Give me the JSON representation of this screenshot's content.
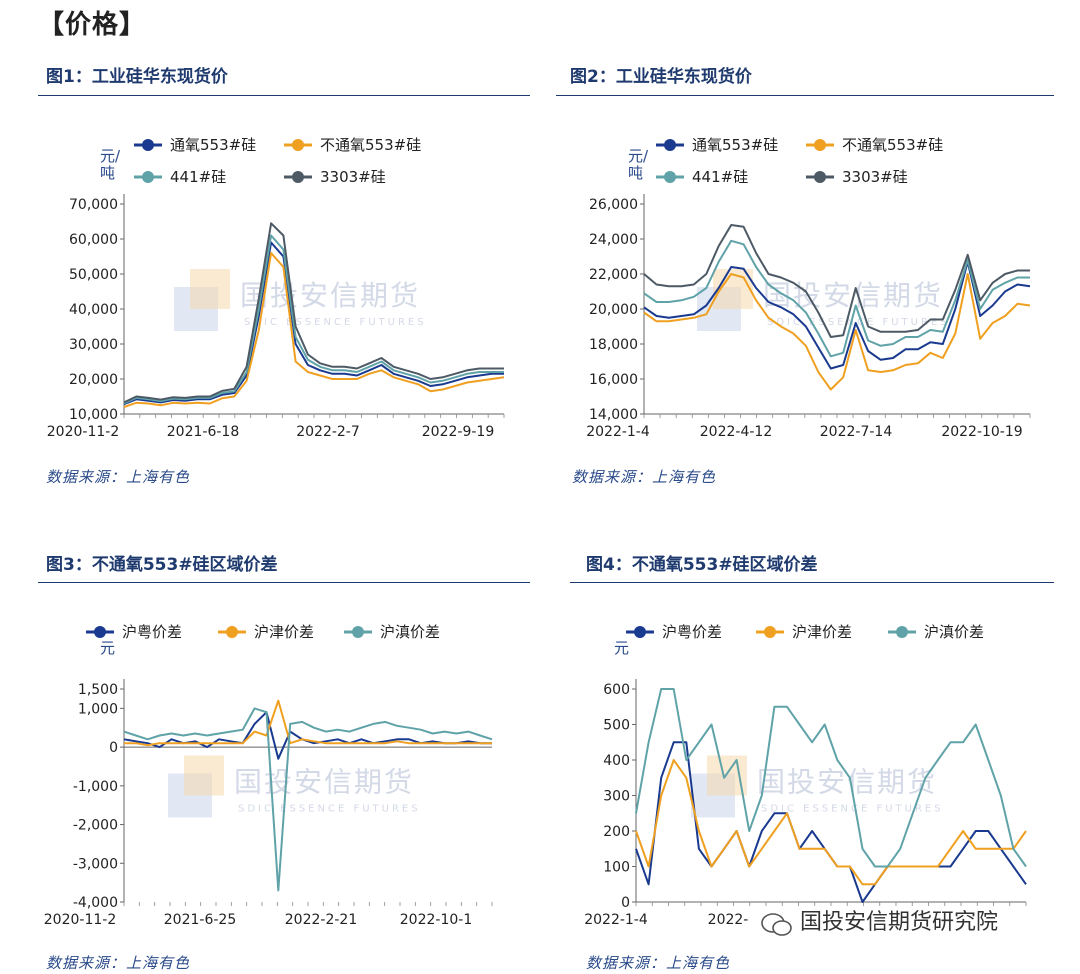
{
  "section_title": "【价格】",
  "watermark": "国投安信期货研究院",
  "chart_data": [
    {
      "id": "fig1",
      "type": "line",
      "title": "图1：工业硅华东现货价",
      "unit": "元/吨",
      "source": "数据来源：上海有色",
      "x_ticks": [
        "2020-11-2",
        "2021-6-18",
        "2022-2-7",
        "2022-9-19"
      ],
      "y_ticks": [
        "10,000",
        "20,000",
        "30,000",
        "40,000",
        "50,000",
        "60,000",
        "70,000"
      ],
      "ylim": [
        10000,
        70000
      ],
      "legend": "top",
      "series": [
        {
          "name": "通氧553#硅",
          "color": "#1a3a8f",
          "values": [
            12800,
            14200,
            13800,
            13300,
            14000,
            13800,
            14200,
            14200,
            15500,
            16000,
            21000,
            38000,
            59000,
            55000,
            30000,
            24000,
            22500,
            21500,
            21500,
            21000,
            22500,
            24000,
            21500,
            20500,
            19500,
            18000,
            18500,
            19500,
            20500,
            21000,
            21500,
            21500
          ]
        },
        {
          "name": "不通氧553#硅",
          "color": "#f0a020",
          "values": [
            12000,
            13200,
            13000,
            12500,
            13200,
            13000,
            13200,
            13000,
            14500,
            15000,
            19500,
            34000,
            56000,
            52000,
            25000,
            22000,
            21000,
            20000,
            20000,
            20000,
            21500,
            22500,
            20500,
            19500,
            18500,
            16500,
            17000,
            18000,
            19000,
            19500,
            20000,
            20500
          ]
        },
        {
          "name": "441#硅",
          "color": "#5fa3a8",
          "values": [
            13000,
            14600,
            14200,
            13700,
            14400,
            14200,
            14600,
            14600,
            16000,
            16500,
            22000,
            40000,
            61000,
            57000,
            32000,
            25500,
            23500,
            22500,
            22500,
            22000,
            23500,
            25000,
            22500,
            21500,
            20500,
            19000,
            19500,
            20500,
            21500,
            22000,
            22000,
            22000
          ]
        },
        {
          "name": "3303#硅",
          "color": "#4d5a66",
          "values": [
            13300,
            15000,
            14600,
            14100,
            14800,
            14600,
            15000,
            15000,
            16600,
            17200,
            23500,
            43000,
            64500,
            61000,
            35000,
            27000,
            24500,
            23500,
            23500,
            23000,
            24500,
            26000,
            23500,
            22500,
            21500,
            20000,
            20500,
            21500,
            22500,
            23000,
            23000,
            23000
          ]
        }
      ]
    },
    {
      "id": "fig2",
      "type": "line",
      "title": "图2：工业硅华东现货价",
      "unit": "元/吨",
      "source": "数据来源：上海有色",
      "x_ticks": [
        "2022-1-4",
        "2022-4-12",
        "2022-7-14",
        "2022-10-19"
      ],
      "y_ticks": [
        "14,000",
        "16,000",
        "18,000",
        "20,000",
        "22,000",
        "24,000",
        "26,000"
      ],
      "ylim": [
        14000,
        26000
      ],
      "legend": "top",
      "series": [
        {
          "name": "通氧553#硅",
          "color": "#1a3a8f",
          "values": [
            20100,
            19600,
            19500,
            19600,
            19700,
            20200,
            21200,
            22400,
            22300,
            21200,
            20400,
            20100,
            19700,
            19000,
            17800,
            16600,
            16800,
            19200,
            17600,
            17100,
            17200,
            17700,
            17700,
            18100,
            18000,
            20000,
            22700,
            19600,
            20200,
            21000,
            21400,
            21300
          ]
        },
        {
          "name": "不通氧553#硅",
          "color": "#f0a020",
          "values": [
            19800,
            19300,
            19300,
            19400,
            19500,
            19700,
            21000,
            22000,
            21800,
            20500,
            19500,
            19000,
            18600,
            17900,
            16400,
            15400,
            16100,
            18800,
            16500,
            16400,
            16500,
            16800,
            16900,
            17500,
            17200,
            18600,
            22000,
            18300,
            19200,
            19600,
            20300,
            20200
          ]
        },
        {
          "name": "441#硅",
          "color": "#5fa3a8",
          "values": [
            20900,
            20400,
            20400,
            20500,
            20700,
            21200,
            22700,
            23900,
            23700,
            22400,
            21400,
            20900,
            20500,
            19800,
            18600,
            17300,
            17500,
            20200,
            18200,
            17900,
            18000,
            18400,
            18400,
            18800,
            18700,
            20500,
            22800,
            20000,
            21100,
            21500,
            21800,
            21800
          ]
        },
        {
          "name": "3303#硅",
          "color": "#4d5a66",
          "values": [
            22000,
            21400,
            21300,
            21300,
            21400,
            22000,
            23600,
            24800,
            24700,
            23200,
            22000,
            21800,
            21500,
            21000,
            19800,
            18400,
            18500,
            21200,
            19000,
            18700,
            18700,
            18700,
            18800,
            19400,
            19400,
            21100,
            23100,
            20500,
            21500,
            22000,
            22200,
            22200
          ]
        }
      ]
    },
    {
      "id": "fig3",
      "type": "line",
      "title": "图3：不通氧553#硅区域价差",
      "unit": "元",
      "source": "数据来源：上海有色",
      "x_ticks": [
        "2020-11-2",
        "2021-6-25",
        "2022-2-21",
        "2022-10-1"
      ],
      "y_ticks": [
        "-4,000",
        "-3,000",
        "-2,000",
        "-1,000",
        "0",
        "1,000",
        "1,500"
      ],
      "ylim": [
        -4000,
        1500
      ],
      "legend": "top",
      "series": [
        {
          "name": "沪粤价差",
          "color": "#1a3a8f",
          "values": [
            200,
            150,
            100,
            0,
            200,
            100,
            150,
            0,
            200,
            150,
            100,
            600,
            900,
            -300,
            400,
            200,
            100,
            150,
            200,
            100,
            200,
            100,
            150,
            200,
            200,
            100,
            150,
            100,
            100,
            150,
            100,
            100
          ]
        },
        {
          "name": "沪津价差",
          "color": "#f0a020",
          "values": [
            100,
            100,
            50,
            100,
            100,
            100,
            100,
            100,
            100,
            100,
            100,
            400,
            300,
            1200,
            100,
            200,
            150,
            100,
            100,
            100,
            100,
            100,
            100,
            150,
            100,
            100,
            100,
            100,
            100,
            100,
            100,
            100
          ]
        },
        {
          "name": "沪滇价差",
          "color": "#5fa3a8",
          "values": [
            400,
            300,
            200,
            300,
            350,
            300,
            350,
            300,
            350,
            400,
            450,
            1000,
            900,
            -3700,
            600,
            650,
            500,
            400,
            450,
            400,
            500,
            600,
            650,
            550,
            500,
            450,
            350,
            400,
            350,
            400,
            300,
            200
          ]
        }
      ]
    },
    {
      "id": "fig4",
      "type": "line",
      "title": "图4：不通氧553#硅区域价差",
      "unit": "元",
      "source": "数据来源：上海有色",
      "x_ticks": [
        "2022-1-4",
        "2022-"
      ],
      "y_ticks": [
        "0",
        "100",
        "200",
        "300",
        "400",
        "500",
        "600"
      ],
      "ylim": [
        0,
        600
      ],
      "legend": "top",
      "series": [
        {
          "name": "沪粤价差",
          "color": "#1a3a8f",
          "values": [
            150,
            50,
            350,
            450,
            450,
            150,
            100,
            150,
            200,
            100,
            200,
            250,
            250,
            150,
            200,
            150,
            100,
            100,
            0,
            50,
            100,
            100,
            100,
            100,
            100,
            100,
            150,
            200,
            200,
            150,
            100,
            50
          ]
        },
        {
          "name": "沪津价差",
          "color": "#f0a020",
          "values": [
            200,
            100,
            300,
            400,
            350,
            200,
            100,
            150,
            200,
            100,
            150,
            200,
            250,
            150,
            150,
            150,
            100,
            100,
            50,
            50,
            100,
            100,
            100,
            100,
            100,
            150,
            200,
            150,
            150,
            150,
            150,
            200
          ]
        },
        {
          "name": "沪滇价差",
          "color": "#5fa3a8",
          "values": [
            250,
            450,
            600,
            600,
            400,
            450,
            500,
            350,
            400,
            200,
            300,
            550,
            550,
            500,
            450,
            500,
            400,
            350,
            150,
            100,
            100,
            150,
            250,
            350,
            400,
            450,
            450,
            500,
            400,
            300,
            150,
            100
          ]
        }
      ]
    }
  ]
}
